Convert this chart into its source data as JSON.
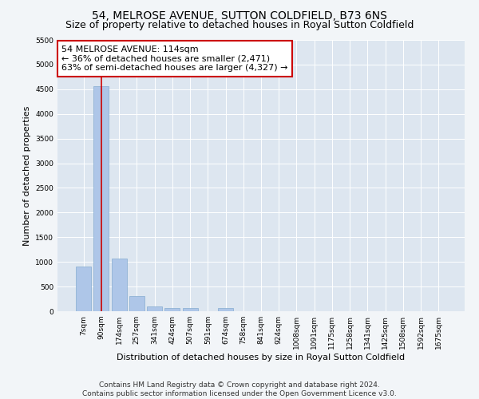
{
  "title_line1": "54, MELROSE AVENUE, SUTTON COLDFIELD, B73 6NS",
  "title_line2": "Size of property relative to detached houses in Royal Sutton Coldfield",
  "xlabel": "Distribution of detached houses by size in Royal Sutton Coldfield",
  "ylabel": "Number of detached properties",
  "categories": [
    "7sqm",
    "90sqm",
    "174sqm",
    "257sqm",
    "341sqm",
    "424sqm",
    "507sqm",
    "591sqm",
    "674sqm",
    "758sqm",
    "841sqm",
    "924sqm",
    "1008sqm",
    "1091sqm",
    "1175sqm",
    "1258sqm",
    "1341sqm",
    "1425sqm",
    "1508sqm",
    "1592sqm",
    "1675sqm"
  ],
  "values": [
    900,
    4560,
    1060,
    300,
    90,
    65,
    60,
    0,
    65,
    0,
    0,
    0,
    0,
    0,
    0,
    0,
    0,
    0,
    0,
    0,
    0
  ],
  "bar_color": "#aec6e8",
  "bar_edge_color": "#85acd0",
  "vline_x": 1.0,
  "vline_color": "#cc0000",
  "annotation_line1": "54 MELROSE AVENUE: 114sqm",
  "annotation_line2": "← 36% of detached houses are smaller (2,471)",
  "annotation_line3": "63% of semi-detached houses are larger (4,327) →",
  "annotation_box_facecolor": "#ffffff",
  "annotation_box_edgecolor": "#cc0000",
  "ylim": [
    0,
    5500
  ],
  "yticks": [
    0,
    500,
    1000,
    1500,
    2000,
    2500,
    3000,
    3500,
    4000,
    4500,
    5000,
    5500
  ],
  "footer_line1": "Contains HM Land Registry data © Crown copyright and database right 2024.",
  "footer_line2": "Contains public sector information licensed under the Open Government Licence v3.0.",
  "fig_facecolor": "#f2f5f8",
  "plot_facecolor": "#dde6f0",
  "grid_color": "#ffffff",
  "title1_fontsize": 10,
  "title2_fontsize": 9,
  "tick_fontsize": 6.5,
  "ylabel_fontsize": 8,
  "xlabel_fontsize": 8,
  "annotation_fontsize": 8,
  "footer_fontsize": 6.5
}
